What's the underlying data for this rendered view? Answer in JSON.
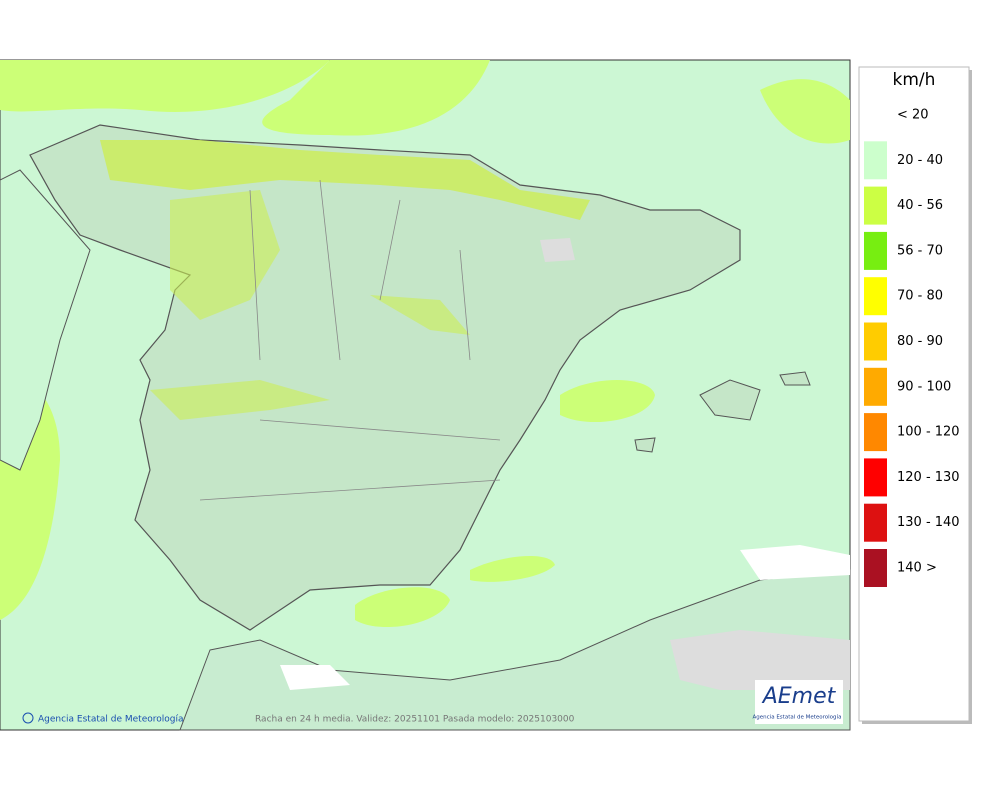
{
  "legend": {
    "title": "km/h",
    "items": [
      {
        "label": "< 20"
      },
      {
        "label": "20 - 40",
        "color": "#ccffcc"
      },
      {
        "label": "40 - 56",
        "color": "#ccff44"
      },
      {
        "label": "56 - 70",
        "color": "#77ee11"
      },
      {
        "label": "70 - 80",
        "color": "#ffff00"
      },
      {
        "label": "80 - 90",
        "color": "#ffcc00"
      },
      {
        "label": "90 - 100",
        "color": "#ffaa00"
      },
      {
        "label": "100 - 120",
        "color": "#ff8800"
      },
      {
        "label": "120 - 130",
        "color": "#ff0000"
      },
      {
        "label": "130 - 140",
        "color": "#dd1111"
      },
      {
        "label": "140 >",
        "color": "#aa1122"
      }
    ]
  },
  "footer": {
    "credit": "Agencia Estatal de Meteorología",
    "caption": "Racha en 24 h media. Validez: 20251101 Pasada modelo: 2025103000"
  },
  "logo": {
    "text": "AEmet",
    "subtitle": "Agencia Estatal de Meteorología"
  }
}
